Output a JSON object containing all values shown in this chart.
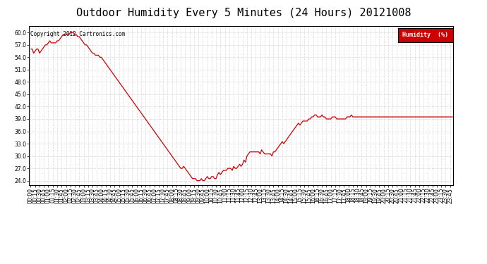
{
  "title": "Outdoor Humidity Every 5 Minutes (24 Hours) 20121008",
  "copyright_text": "Copyright 2012 Cartronics.com",
  "legend_label": "Humidity  (%)",
  "legend_bg": "#cc0000",
  "legend_text_color": "#ffffff",
  "line_color": "#cc0000",
  "bg_color": "#ffffff",
  "grid_color": "#bbbbbb",
  "ylim": [
    23.0,
    61.5
  ],
  "yticks": [
    24.0,
    27.0,
    30.0,
    33.0,
    36.0,
    39.0,
    42.0,
    45.0,
    48.0,
    51.0,
    54.0,
    57.0,
    60.0
  ],
  "title_fontsize": 11,
  "tick_fontsize": 5.5,
  "humidity_values": [
    56.0,
    56.0,
    55.0,
    55.5,
    56.0,
    56.0,
    55.0,
    55.5,
    56.0,
    56.5,
    57.0,
    57.0,
    57.5,
    58.0,
    57.5,
    57.5,
    57.5,
    57.5,
    58.0,
    58.0,
    58.5,
    59.0,
    59.5,
    59.5,
    59.5,
    59.5,
    59.5,
    60.0,
    60.0,
    60.0,
    59.5,
    59.5,
    59.0,
    59.0,
    58.5,
    58.0,
    57.5,
    57.0,
    57.0,
    56.5,
    56.0,
    55.5,
    55.0,
    55.0,
    54.5,
    54.5,
    54.5,
    54.0,
    54.0,
    53.5,
    53.0,
    52.5,
    52.0,
    51.5,
    51.0,
    50.5,
    50.0,
    49.5,
    49.0,
    48.5,
    48.0,
    47.5,
    47.0,
    46.5,
    46.0,
    45.5,
    45.0,
    44.5,
    44.0,
    43.5,
    43.0,
    42.5,
    42.0,
    41.5,
    41.0,
    40.5,
    40.0,
    39.5,
    39.0,
    38.5,
    38.0,
    37.5,
    37.0,
    36.5,
    36.0,
    35.5,
    35.0,
    34.5,
    34.0,
    33.5,
    33.0,
    32.5,
    32.0,
    31.5,
    31.0,
    30.5,
    30.0,
    29.5,
    29.0,
    28.5,
    28.0,
    27.5,
    27.0,
    27.0,
    27.5,
    27.0,
    26.5,
    26.0,
    25.5,
    25.0,
    24.5,
    24.5,
    24.5,
    24.0,
    24.0,
    24.0,
    24.5,
    24.0,
    24.0,
    24.5,
    25.0,
    24.5,
    24.5,
    25.0,
    25.0,
    24.5,
    24.5,
    25.5,
    26.0,
    25.5,
    26.0,
    26.5,
    26.5,
    26.5,
    27.0,
    27.0,
    27.0,
    26.5,
    27.5,
    27.0,
    27.0,
    27.5,
    28.0,
    27.5,
    28.0,
    29.0,
    28.5,
    30.0,
    30.5,
    31.0,
    31.0,
    31.0,
    31.0,
    31.0,
    31.0,
    31.0,
    30.5,
    31.5,
    31.0,
    30.5,
    30.5,
    30.5,
    30.5,
    30.5,
    30.0,
    31.0,
    31.0,
    31.5,
    32.0,
    32.5,
    33.0,
    33.5,
    33.0,
    33.5,
    34.0,
    34.5,
    35.0,
    35.5,
    36.0,
    36.5,
    37.0,
    37.5,
    38.0,
    37.5,
    38.0,
    38.5,
    38.5,
    38.5,
    38.5,
    39.0,
    39.0,
    39.5,
    39.5,
    40.0,
    40.0,
    39.5,
    39.5,
    39.5,
    40.0,
    39.5,
    39.5,
    39.0,
    39.0,
    39.0,
    39.0,
    39.5,
    39.5,
    39.5,
    39.0,
    39.0,
    39.0,
    39.0,
    39.0,
    39.0,
    39.0,
    39.5,
    39.5,
    39.5,
    40.0,
    39.5,
    39.5,
    39.5,
    39.5,
    39.5,
    39.5,
    39.5,
    39.5,
    39.5,
    39.5,
    39.5,
    39.5,
    39.5,
    39.5,
    39.5,
    39.5,
    39.5,
    39.5,
    39.5,
    39.5,
    39.5,
    39.5,
    39.5,
    39.5,
    39.5,
    39.5,
    39.5,
    39.5,
    39.5,
    39.5,
    39.5,
    39.5,
    39.5,
    39.5,
    39.5,
    39.5,
    39.5,
    39.5,
    39.5,
    39.5,
    39.5,
    39.5,
    39.5,
    39.5,
    39.5,
    39.5,
    39.5,
    39.5,
    39.5,
    39.5,
    39.5,
    39.5,
    39.5,
    39.5,
    39.5,
    39.5,
    39.5,
    39.5,
    39.5,
    39.5,
    39.5,
    39.5,
    39.5,
    39.5,
    39.5,
    39.5,
    39.5,
    39.5,
    39.5
  ],
  "n_points": 288,
  "show_every_nth_tick": 3
}
